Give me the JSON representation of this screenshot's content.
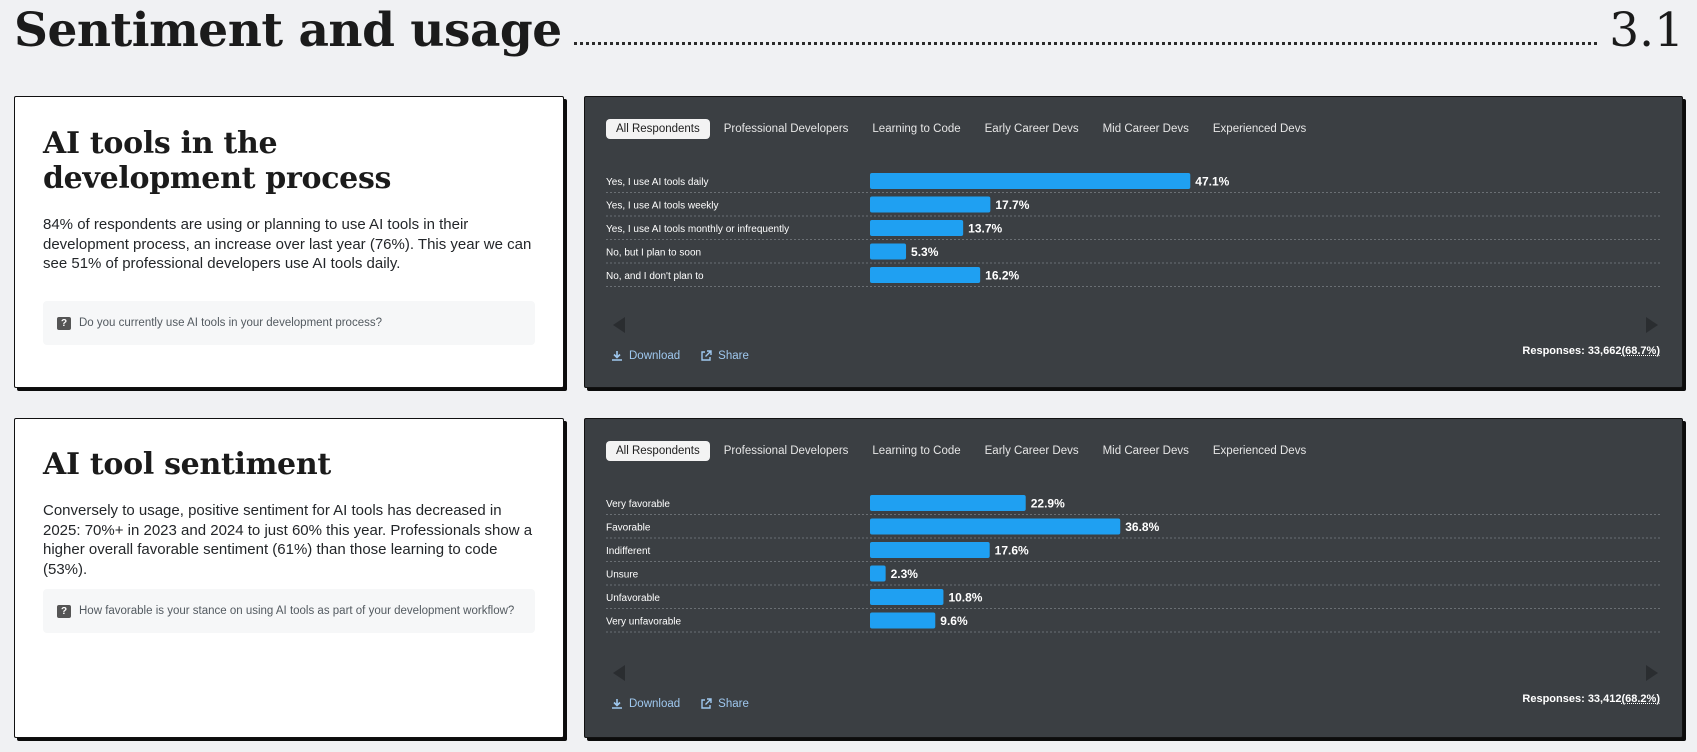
{
  "header": {
    "title": "Sentiment and usage",
    "section_number": "3.1"
  },
  "colors": {
    "bar": "#1fa0f2",
    "panel": "#3b3f43",
    "page_bg": "#f0f1f3"
  },
  "icons": {
    "question": "question-mark-square-icon",
    "download": "download-icon",
    "share": "external-link-icon",
    "prev": "chevron-left-icon",
    "next": "chevron-right-icon"
  },
  "tabs": [
    "All Respondents",
    "Professional Developers",
    "Learning to Code",
    "Early Career Devs",
    "Mid Career Devs",
    "Experienced Devs"
  ],
  "active_tab": "All Respondents",
  "sections": [
    {
      "heading": "AI tools in the development process",
      "description": "84% of respondents are using or planning to use AI tools in their development process, an increase over last year (76%). This year we can see 51% of professional developers use AI tools daily.",
      "question": "Do you currently use AI tools in your development process?",
      "download_label": "Download",
      "share_label": "Share",
      "responses_label": "Responses:",
      "responses_count": "33,662",
      "responses_pct": "(68.7%)"
    },
    {
      "heading": "AI tool sentiment",
      "description": "Conversely to usage, positive sentiment for AI tools has decreased in 2025: 70%+ in 2023 and 2024 to just 60% this year. Professionals show a higher overall favorable sentiment (61%) than those learning to code (53%).",
      "question": "How favorable is your stance on using AI tools as part of your development workflow?",
      "download_label": "Download",
      "share_label": "Share",
      "responses_label": "Responses:",
      "responses_count": "33,412",
      "responses_pct": "(68.2%)"
    }
  ],
  "chart_data": [
    {
      "type": "bar",
      "orientation": "horizontal",
      "categories": [
        "Yes, I use AI tools daily",
        "Yes, I use AI tools weekly",
        "Yes, I use AI tools monthly or infrequently",
        "No, but I plan to soon",
        "No, and I don't plan to"
      ],
      "values": [
        47.1,
        17.7,
        13.7,
        5.3,
        16.2
      ],
      "value_labels": [
        "47.1%",
        "17.7%",
        "13.7%",
        "5.3%",
        "16.2%"
      ],
      "unit": "%",
      "xlim": [
        0,
        100
      ],
      "grid": true
    },
    {
      "type": "bar",
      "orientation": "horizontal",
      "categories": [
        "Very favorable",
        "Favorable",
        "Indifferent",
        "Unsure",
        "Unfavorable",
        "Very unfavorable"
      ],
      "values": [
        22.9,
        36.8,
        17.6,
        2.3,
        10.8,
        9.6
      ],
      "value_labels": [
        "22.9%",
        "36.8%",
        "17.6%",
        "2.3%",
        "10.8%",
        "9.6%"
      ],
      "unit": "%",
      "xlim": [
        0,
        100
      ],
      "grid": true
    }
  ]
}
